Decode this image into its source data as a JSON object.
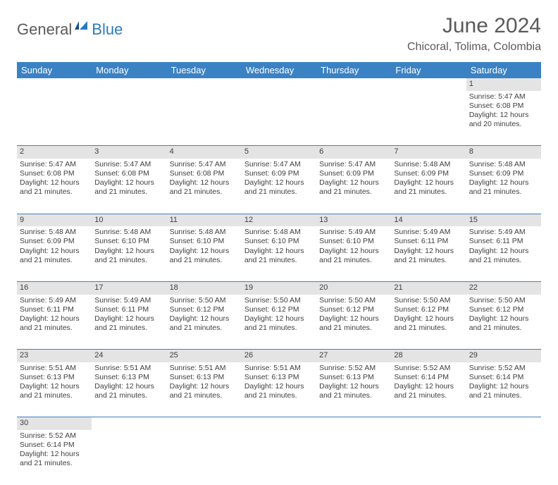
{
  "logo": {
    "text1": "General",
    "text2": "Blue"
  },
  "title": "June 2024",
  "location": "Chicoral, Tolima, Colombia",
  "colors": {
    "header_bg": "#3b82c4",
    "header_text": "#ffffff",
    "daynum_bg": "#e4e4e4",
    "text": "#404040",
    "logo_gray": "#5a5a5a",
    "logo_blue": "#2b7bbf",
    "rule": "#3b82c4"
  },
  "weekdays": [
    "Sunday",
    "Monday",
    "Tuesday",
    "Wednesday",
    "Thursday",
    "Friday",
    "Saturday"
  ],
  "weeks": [
    [
      null,
      null,
      null,
      null,
      null,
      null,
      {
        "n": "1",
        "sunrise": "Sunrise: 5:47 AM",
        "sunset": "Sunset: 6:08 PM",
        "day1": "Daylight: 12 hours",
        "day2": "and 20 minutes."
      }
    ],
    [
      {
        "n": "2",
        "sunrise": "Sunrise: 5:47 AM",
        "sunset": "Sunset: 6:08 PM",
        "day1": "Daylight: 12 hours",
        "day2": "and 21 minutes."
      },
      {
        "n": "3",
        "sunrise": "Sunrise: 5:47 AM",
        "sunset": "Sunset: 6:08 PM",
        "day1": "Daylight: 12 hours",
        "day2": "and 21 minutes."
      },
      {
        "n": "4",
        "sunrise": "Sunrise: 5:47 AM",
        "sunset": "Sunset: 6:08 PM",
        "day1": "Daylight: 12 hours",
        "day2": "and 21 minutes."
      },
      {
        "n": "5",
        "sunrise": "Sunrise: 5:47 AM",
        "sunset": "Sunset: 6:09 PM",
        "day1": "Daylight: 12 hours",
        "day2": "and 21 minutes."
      },
      {
        "n": "6",
        "sunrise": "Sunrise: 5:47 AM",
        "sunset": "Sunset: 6:09 PM",
        "day1": "Daylight: 12 hours",
        "day2": "and 21 minutes."
      },
      {
        "n": "7",
        "sunrise": "Sunrise: 5:48 AM",
        "sunset": "Sunset: 6:09 PM",
        "day1": "Daylight: 12 hours",
        "day2": "and 21 minutes."
      },
      {
        "n": "8",
        "sunrise": "Sunrise: 5:48 AM",
        "sunset": "Sunset: 6:09 PM",
        "day1": "Daylight: 12 hours",
        "day2": "and 21 minutes."
      }
    ],
    [
      {
        "n": "9",
        "sunrise": "Sunrise: 5:48 AM",
        "sunset": "Sunset: 6:09 PM",
        "day1": "Daylight: 12 hours",
        "day2": "and 21 minutes."
      },
      {
        "n": "10",
        "sunrise": "Sunrise: 5:48 AM",
        "sunset": "Sunset: 6:10 PM",
        "day1": "Daylight: 12 hours",
        "day2": "and 21 minutes."
      },
      {
        "n": "11",
        "sunrise": "Sunrise: 5:48 AM",
        "sunset": "Sunset: 6:10 PM",
        "day1": "Daylight: 12 hours",
        "day2": "and 21 minutes."
      },
      {
        "n": "12",
        "sunrise": "Sunrise: 5:48 AM",
        "sunset": "Sunset: 6:10 PM",
        "day1": "Daylight: 12 hours",
        "day2": "and 21 minutes."
      },
      {
        "n": "13",
        "sunrise": "Sunrise: 5:49 AM",
        "sunset": "Sunset: 6:10 PM",
        "day1": "Daylight: 12 hours",
        "day2": "and 21 minutes."
      },
      {
        "n": "14",
        "sunrise": "Sunrise: 5:49 AM",
        "sunset": "Sunset: 6:11 PM",
        "day1": "Daylight: 12 hours",
        "day2": "and 21 minutes."
      },
      {
        "n": "15",
        "sunrise": "Sunrise: 5:49 AM",
        "sunset": "Sunset: 6:11 PM",
        "day1": "Daylight: 12 hours",
        "day2": "and 21 minutes."
      }
    ],
    [
      {
        "n": "16",
        "sunrise": "Sunrise: 5:49 AM",
        "sunset": "Sunset: 6:11 PM",
        "day1": "Daylight: 12 hours",
        "day2": "and 21 minutes."
      },
      {
        "n": "17",
        "sunrise": "Sunrise: 5:49 AM",
        "sunset": "Sunset: 6:11 PM",
        "day1": "Daylight: 12 hours",
        "day2": "and 21 minutes."
      },
      {
        "n": "18",
        "sunrise": "Sunrise: 5:50 AM",
        "sunset": "Sunset: 6:12 PM",
        "day1": "Daylight: 12 hours",
        "day2": "and 21 minutes."
      },
      {
        "n": "19",
        "sunrise": "Sunrise: 5:50 AM",
        "sunset": "Sunset: 6:12 PM",
        "day1": "Daylight: 12 hours",
        "day2": "and 21 minutes."
      },
      {
        "n": "20",
        "sunrise": "Sunrise: 5:50 AM",
        "sunset": "Sunset: 6:12 PM",
        "day1": "Daylight: 12 hours",
        "day2": "and 21 minutes."
      },
      {
        "n": "21",
        "sunrise": "Sunrise: 5:50 AM",
        "sunset": "Sunset: 6:12 PM",
        "day1": "Daylight: 12 hours",
        "day2": "and 21 minutes."
      },
      {
        "n": "22",
        "sunrise": "Sunrise: 5:50 AM",
        "sunset": "Sunset: 6:12 PM",
        "day1": "Daylight: 12 hours",
        "day2": "and 21 minutes."
      }
    ],
    [
      {
        "n": "23",
        "sunrise": "Sunrise: 5:51 AM",
        "sunset": "Sunset: 6:13 PM",
        "day1": "Daylight: 12 hours",
        "day2": "and 21 minutes."
      },
      {
        "n": "24",
        "sunrise": "Sunrise: 5:51 AM",
        "sunset": "Sunset: 6:13 PM",
        "day1": "Daylight: 12 hours",
        "day2": "and 21 minutes."
      },
      {
        "n": "25",
        "sunrise": "Sunrise: 5:51 AM",
        "sunset": "Sunset: 6:13 PM",
        "day1": "Daylight: 12 hours",
        "day2": "and 21 minutes."
      },
      {
        "n": "26",
        "sunrise": "Sunrise: 5:51 AM",
        "sunset": "Sunset: 6:13 PM",
        "day1": "Daylight: 12 hours",
        "day2": "and 21 minutes."
      },
      {
        "n": "27",
        "sunrise": "Sunrise: 5:52 AM",
        "sunset": "Sunset: 6:13 PM",
        "day1": "Daylight: 12 hours",
        "day2": "and 21 minutes."
      },
      {
        "n": "28",
        "sunrise": "Sunrise: 5:52 AM",
        "sunset": "Sunset: 6:14 PM",
        "day1": "Daylight: 12 hours",
        "day2": "and 21 minutes."
      },
      {
        "n": "29",
        "sunrise": "Sunrise: 5:52 AM",
        "sunset": "Sunset: 6:14 PM",
        "day1": "Daylight: 12 hours",
        "day2": "and 21 minutes."
      }
    ],
    [
      {
        "n": "30",
        "sunrise": "Sunrise: 5:52 AM",
        "sunset": "Sunset: 6:14 PM",
        "day1": "Daylight: 12 hours",
        "day2": "and 21 minutes."
      },
      null,
      null,
      null,
      null,
      null,
      null
    ]
  ]
}
